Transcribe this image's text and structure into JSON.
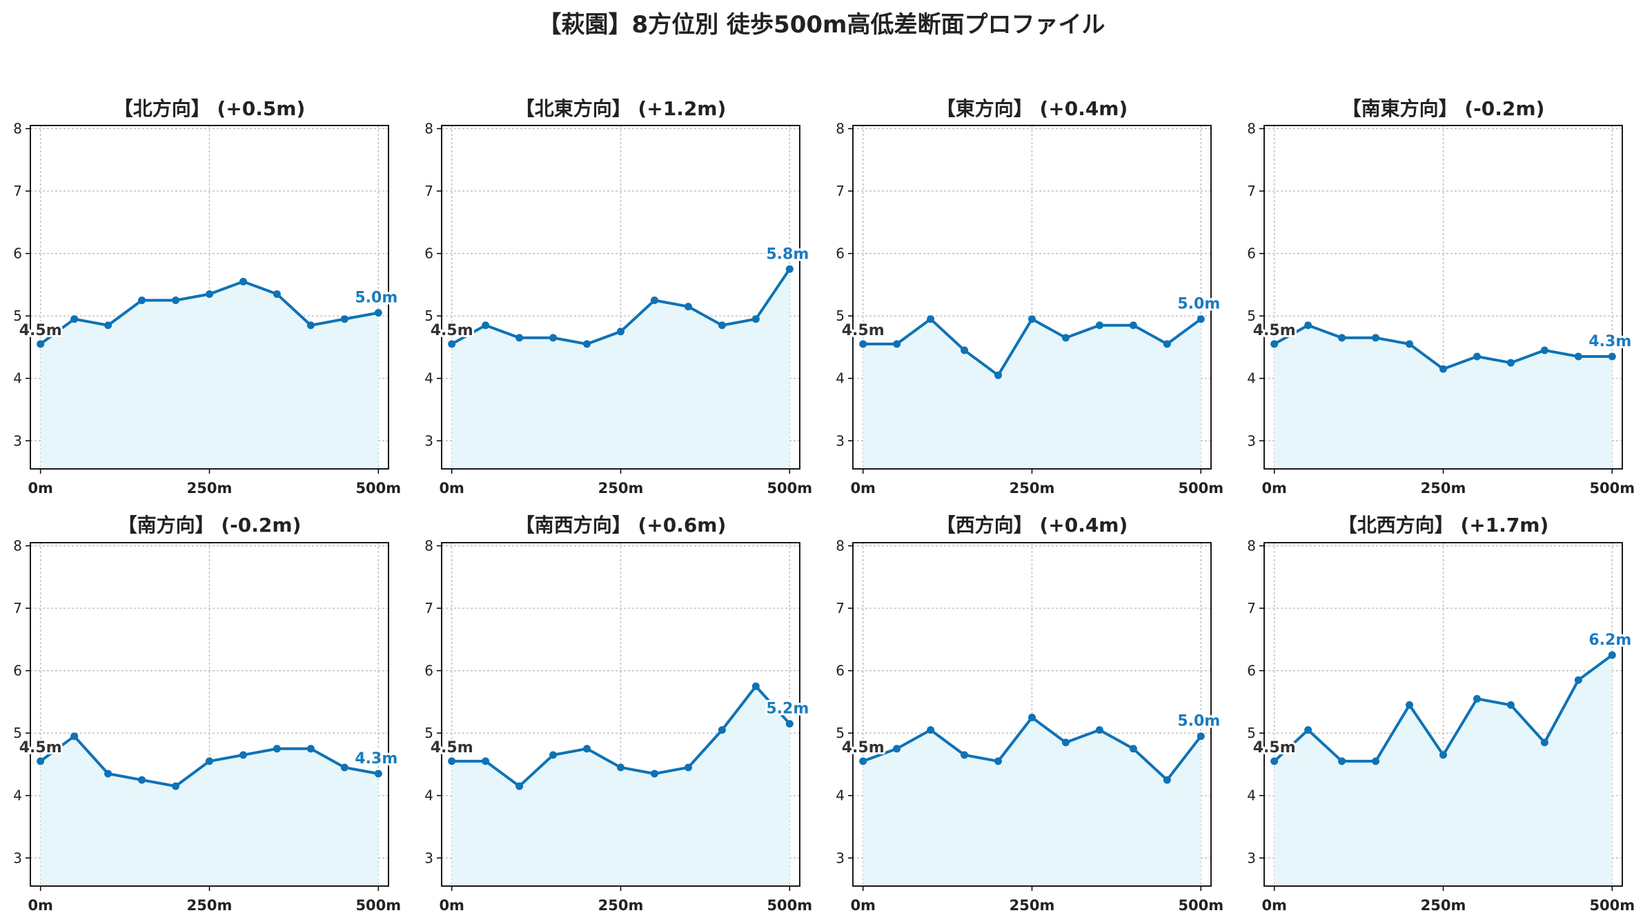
{
  "suptitle": "【萩園】8方位別 徒歩500m高低差断面プロファイル",
  "colors": {
    "line": "#0f72b5",
    "fill": "#e6f6fb",
    "start_label": "#333333",
    "end_label": "#1a7bbf",
    "grid": "#bdbdbd"
  },
  "chart_data": [
    {
      "type": "area",
      "title": "【北方向】 (+0.5m)",
      "x": [
        0,
        50,
        100,
        150,
        200,
        250,
        300,
        350,
        400,
        450,
        500
      ],
      "y": [
        4.55,
        4.95,
        4.85,
        5.25,
        5.25,
        5.35,
        5.55,
        5.35,
        4.85,
        4.95,
        5.05
      ],
      "xticks": [
        "0m",
        "250m",
        "500m"
      ],
      "yticks": [
        "3",
        "4",
        "5",
        "6",
        "7",
        "8"
      ],
      "xlim": [
        -15,
        515
      ],
      "ylim": [
        2.55,
        8.05
      ],
      "start_label": "4.5m",
      "end_label": "5.0m",
      "grid": true
    },
    {
      "type": "area",
      "title": "【北東方向】 (+1.2m)",
      "x": [
        0,
        50,
        100,
        150,
        200,
        250,
        300,
        350,
        400,
        450,
        500
      ],
      "y": [
        4.55,
        4.85,
        4.65,
        4.65,
        4.55,
        4.75,
        5.25,
        5.15,
        4.85,
        4.95,
        5.75
      ],
      "xticks": [
        "0m",
        "250m",
        "500m"
      ],
      "yticks": [
        "3",
        "4",
        "5",
        "6",
        "7",
        "8"
      ],
      "xlim": [
        -15,
        515
      ],
      "ylim": [
        2.55,
        8.05
      ],
      "start_label": "4.5m",
      "end_label": "5.8m",
      "grid": true
    },
    {
      "type": "area",
      "title": "【東方向】 (+0.4m)",
      "x": [
        0,
        50,
        100,
        150,
        200,
        250,
        300,
        350,
        400,
        450,
        500
      ],
      "y": [
        4.55,
        4.55,
        4.95,
        4.45,
        4.05,
        4.95,
        4.65,
        4.85,
        4.85,
        4.55,
        4.95
      ],
      "xticks": [
        "0m",
        "250m",
        "500m"
      ],
      "yticks": [
        "3",
        "4",
        "5",
        "6",
        "7",
        "8"
      ],
      "xlim": [
        -15,
        515
      ],
      "ylim": [
        2.55,
        8.05
      ],
      "start_label": "4.5m",
      "end_label": "5.0m",
      "grid": true
    },
    {
      "type": "area",
      "title": "【南東方向】 (-0.2m)",
      "x": [
        0,
        50,
        100,
        150,
        200,
        250,
        300,
        350,
        400,
        450,
        500
      ],
      "y": [
        4.55,
        4.85,
        4.65,
        4.65,
        4.55,
        4.15,
        4.35,
        4.25,
        4.45,
        4.35,
        4.35
      ],
      "xticks": [
        "0m",
        "250m",
        "500m"
      ],
      "yticks": [
        "3",
        "4",
        "5",
        "6",
        "7",
        "8"
      ],
      "xlim": [
        -15,
        515
      ],
      "ylim": [
        2.55,
        8.05
      ],
      "start_label": "4.5m",
      "end_label": "4.3m",
      "grid": true
    },
    {
      "type": "area",
      "title": "【南方向】 (-0.2m)",
      "x": [
        0,
        50,
        100,
        150,
        200,
        250,
        300,
        350,
        400,
        450,
        500
      ],
      "y": [
        4.55,
        4.95,
        4.35,
        4.25,
        4.15,
        4.55,
        4.65,
        4.75,
        4.75,
        4.45,
        4.35
      ],
      "xticks": [
        "0m",
        "250m",
        "500m"
      ],
      "yticks": [
        "3",
        "4",
        "5",
        "6",
        "7",
        "8"
      ],
      "xlim": [
        -15,
        515
      ],
      "ylim": [
        2.55,
        8.05
      ],
      "start_label": "4.5m",
      "end_label": "4.3m",
      "grid": true
    },
    {
      "type": "area",
      "title": "【南西方向】 (+0.6m)",
      "x": [
        0,
        50,
        100,
        150,
        200,
        250,
        300,
        350,
        400,
        450,
        500
      ],
      "y": [
        4.55,
        4.55,
        4.15,
        4.65,
        4.75,
        4.45,
        4.35,
        4.45,
        5.05,
        5.75,
        5.15
      ],
      "xticks": [
        "0m",
        "250m",
        "500m"
      ],
      "yticks": [
        "3",
        "4",
        "5",
        "6",
        "7",
        "8"
      ],
      "xlim": [
        -15,
        515
      ],
      "ylim": [
        2.55,
        8.05
      ],
      "start_label": "4.5m",
      "end_label": "5.2m",
      "grid": true
    },
    {
      "type": "area",
      "title": "【西方向】 (+0.4m)",
      "x": [
        0,
        50,
        100,
        150,
        200,
        250,
        300,
        350,
        400,
        450,
        500
      ],
      "y": [
        4.55,
        4.75,
        5.05,
        4.65,
        4.55,
        5.25,
        4.85,
        5.05,
        4.75,
        4.25,
        4.95
      ],
      "xticks": [
        "0m",
        "250m",
        "500m"
      ],
      "yticks": [
        "3",
        "4",
        "5",
        "6",
        "7",
        "8"
      ],
      "xlim": [
        -15,
        515
      ],
      "ylim": [
        2.55,
        8.05
      ],
      "start_label": "4.5m",
      "end_label": "5.0m",
      "grid": true
    },
    {
      "type": "area",
      "title": "【北西方向】 (+1.7m)",
      "x": [
        0,
        50,
        100,
        150,
        200,
        250,
        300,
        350,
        400,
        450,
        500
      ],
      "y": [
        4.55,
        5.05,
        4.55,
        4.55,
        5.45,
        4.65,
        5.55,
        5.45,
        4.85,
        5.85,
        6.25
      ],
      "xticks": [
        "0m",
        "250m",
        "500m"
      ],
      "yticks": [
        "3",
        "4",
        "5",
        "6",
        "7",
        "8"
      ],
      "xlim": [
        -15,
        515
      ],
      "ylim": [
        2.55,
        8.05
      ],
      "start_label": "4.5m",
      "end_label": "6.2m",
      "grid": true
    }
  ]
}
